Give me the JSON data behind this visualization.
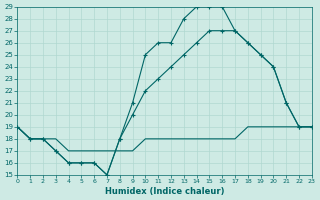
{
  "xlabel": "Humidex (Indice chaleur)",
  "bg_color": "#ceeae4",
  "line_color": "#006666",
  "grid_color": "#b0d8d0",
  "xlim": [
    0,
    23
  ],
  "ylim": [
    15,
    29
  ],
  "xticks": [
    0,
    1,
    2,
    3,
    4,
    5,
    6,
    7,
    8,
    9,
    10,
    11,
    12,
    13,
    14,
    15,
    16,
    17,
    18,
    19,
    20,
    21,
    22,
    23
  ],
  "yticks": [
    15,
    16,
    17,
    18,
    19,
    20,
    21,
    22,
    23,
    24,
    25,
    26,
    27,
    28,
    29
  ],
  "series": [
    {
      "x": [
        0,
        1,
        2,
        3,
        4,
        5,
        6,
        7,
        8,
        9,
        10,
        11,
        12,
        13,
        14,
        15,
        16,
        17,
        18,
        19,
        20,
        21,
        22,
        23
      ],
      "y": [
        19,
        18,
        18,
        18,
        17,
        17,
        17,
        17,
        17,
        17,
        18,
        18,
        18,
        18,
        18,
        18,
        18,
        18,
        19,
        19,
        19,
        19,
        19,
        19
      ],
      "has_marker": false
    },
    {
      "x": [
        0,
        1,
        2,
        3,
        4,
        5,
        6,
        7,
        8,
        9,
        10,
        11,
        12,
        13,
        14,
        15,
        16,
        17,
        18,
        19,
        20,
        21,
        22,
        23
      ],
      "y": [
        19,
        18,
        18,
        17,
        16,
        16,
        16,
        15,
        18,
        20,
        22,
        23,
        24,
        25,
        26,
        27,
        27,
        27,
        26,
        25,
        24,
        21,
        19,
        19
      ],
      "has_marker": true
    },
    {
      "x": [
        0,
        1,
        2,
        3,
        4,
        5,
        6,
        7,
        8,
        9,
        10,
        11,
        12,
        13,
        14,
        15,
        16,
        17,
        18,
        19,
        20,
        21,
        22,
        23
      ],
      "y": [
        19,
        18,
        18,
        17,
        16,
        16,
        16,
        15,
        18,
        21,
        25,
        26,
        26,
        28,
        29,
        29,
        29,
        27,
        26,
        25,
        24,
        21,
        19,
        19
      ],
      "has_marker": true
    }
  ]
}
